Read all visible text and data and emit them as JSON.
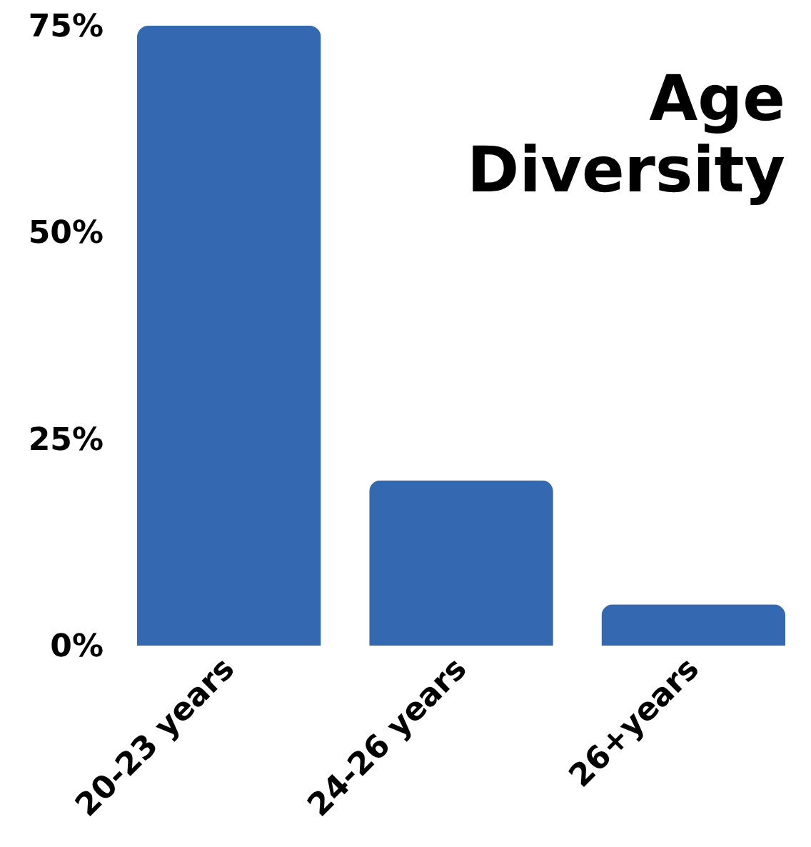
{
  "chart_data": {
    "type": "bar",
    "title": "Age Diversity",
    "categories": [
      "20-23 years",
      "24-26 years",
      "26+years"
    ],
    "values": [
      75,
      20,
      5
    ],
    "color": "#3468b0",
    "ylim": [
      0,
      75
    ],
    "yticks": [
      {
        "value": 0,
        "label": "0%"
      },
      {
        "value": 25,
        "label": "25%"
      },
      {
        "value": 50,
        "label": "50%"
      },
      {
        "value": 75,
        "label": "75%"
      }
    ],
    "grid": false
  }
}
